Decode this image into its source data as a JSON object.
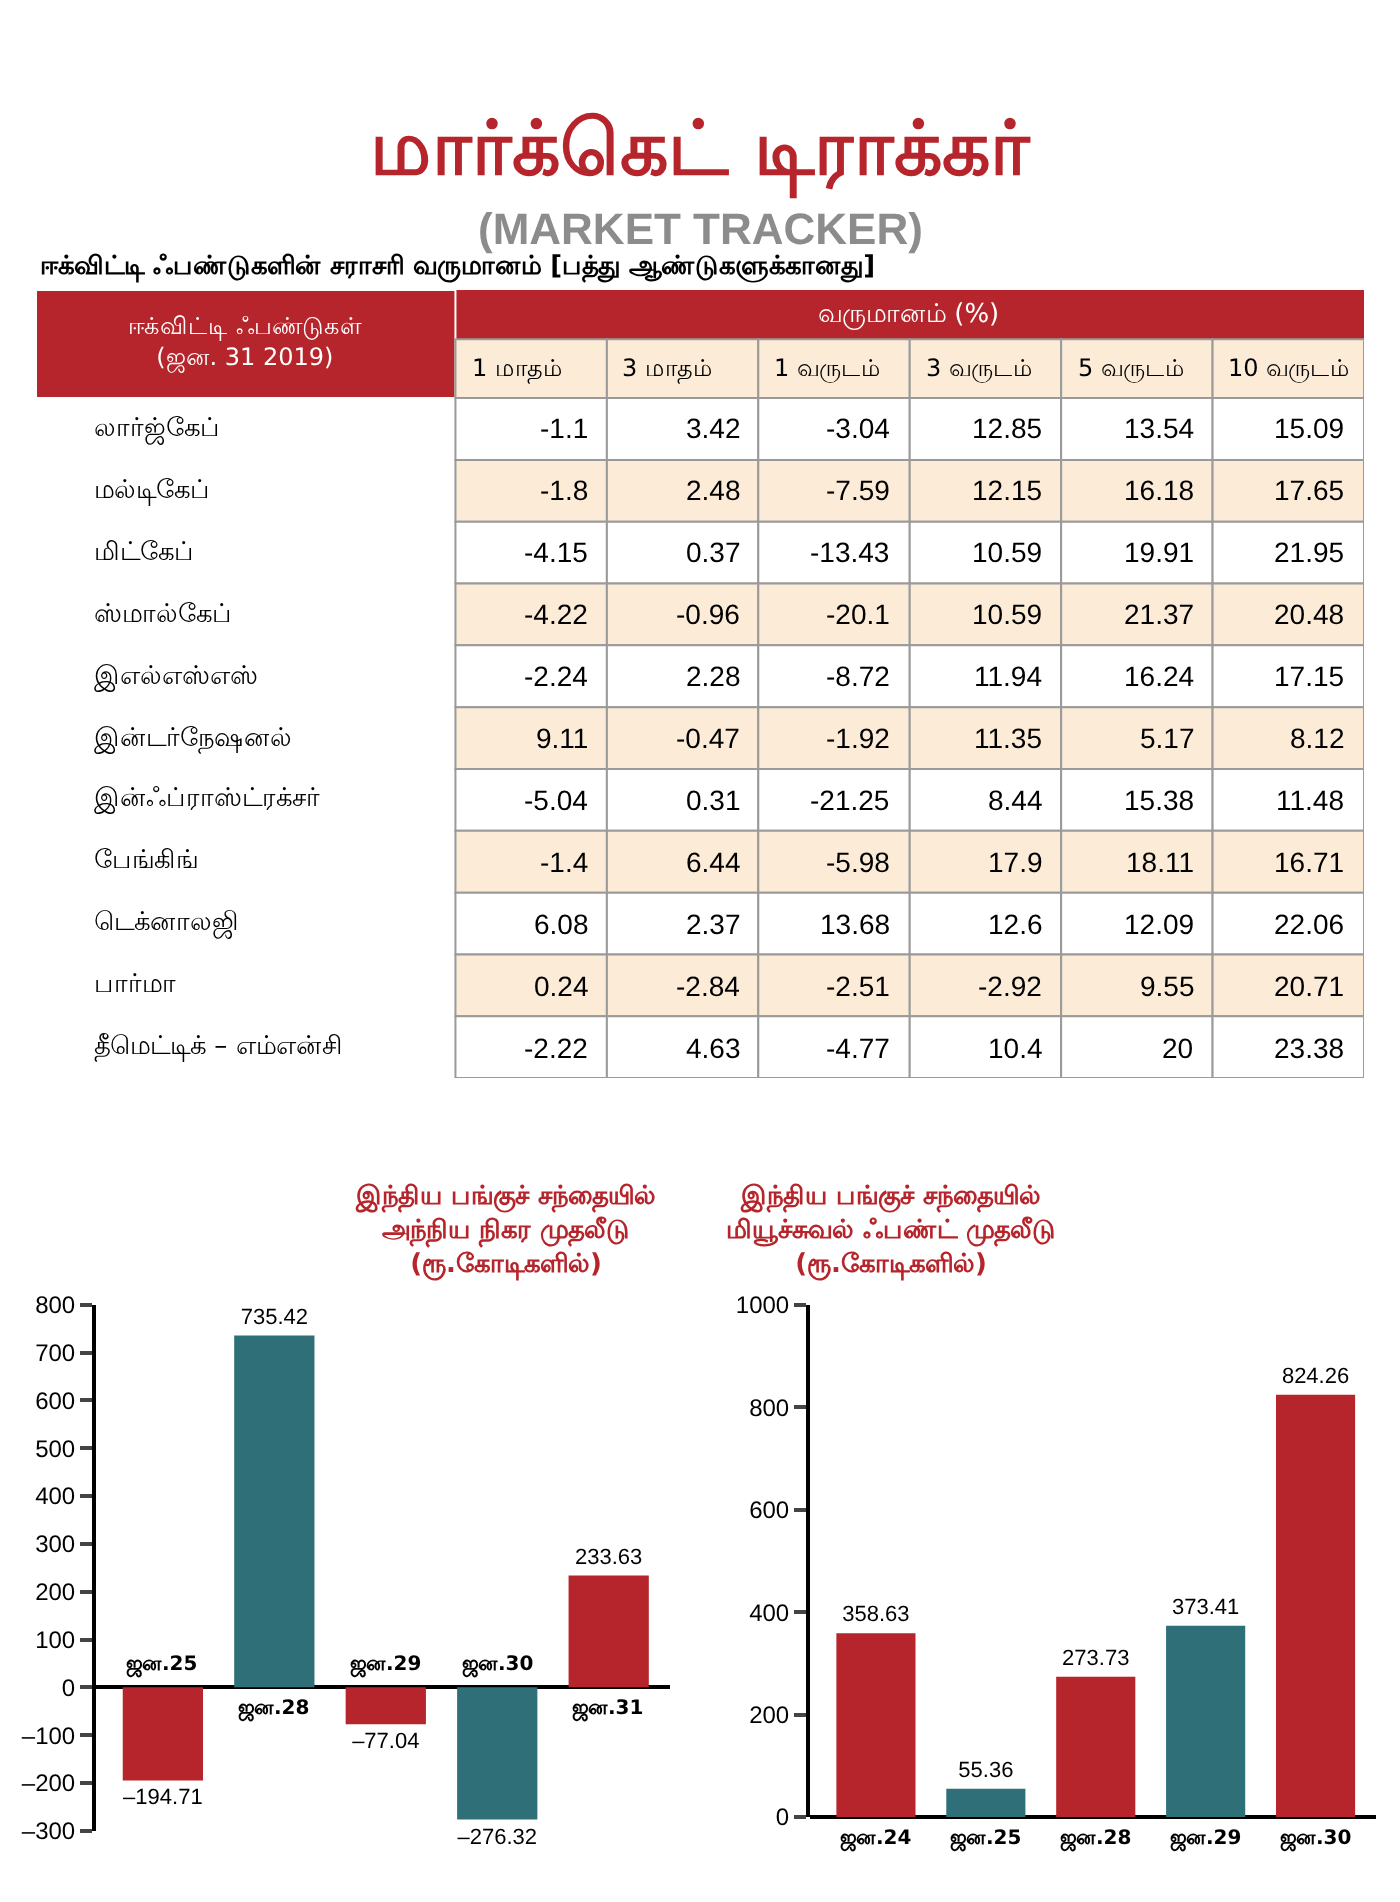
{
  "chart_data": [
    {
      "type": "heatmap",
      "title": "மார்க்கெட் டிராக்கர்",
      "subtitle": "(MARKET TRACKER)",
      "annotations": [
        "ஈக்விட்டி ஃபண்டுகளின் சராசரி வருமானம் [பத்து ஆண்டுகளுக்கானது]"
      ],
      "ylabel": "ஈக்விட்டி ஃபண்டுகள்\n(ஜன. 31 2019)",
      "xlabel": "வருமானம் (%)",
      "categories": [
        "1 மாதம்",
        "3 மாதம்",
        "1 வருடம்",
        "3 வருடம்",
        "5 வருடம்",
        "10 வருடம்"
      ],
      "y_categories": [
        "லார்ஜ்கேப்",
        "மல்டிகேப்",
        "மிட்கேப்",
        "ஸ்மால்கேப்",
        "இஎல்எஸ்எஸ்",
        "இன்டர்நேஷனல்",
        "இன்ஃப்ராஸ்ட்ரக்சர்",
        "பேங்கிங்",
        "டெக்னாலஜி",
        "பார்மா",
        "தீமெட்டிக் – எம்என்சி"
      ],
      "cells": [
        [
          -1.1,
          3.42,
          -3.04,
          12.85,
          13.54,
          15.09
        ],
        [
          -1.8,
          2.48,
          -7.59,
          12.15,
          16.18,
          17.65
        ],
        [
          -4.15,
          0.37,
          -13.43,
          10.59,
          19.91,
          21.95
        ],
        [
          -4.22,
          -0.96,
          -20.1,
          10.59,
          21.37,
          20.48
        ],
        [
          -2.24,
          2.28,
          -8.72,
          11.94,
          16.24,
          17.15
        ],
        [
          9.11,
          -0.47,
          -1.92,
          11.35,
          5.17,
          8.12
        ],
        [
          -5.04,
          0.31,
          -21.25,
          8.44,
          15.38,
          11.48
        ],
        [
          -1.4,
          6.44,
          -5.98,
          17.9,
          18.11,
          16.71
        ],
        [
          6.08,
          2.37,
          13.68,
          12.6,
          12.09,
          22.06
        ],
        [
          0.24,
          -2.84,
          -2.51,
          -2.92,
          9.55,
          20.71
        ],
        [
          -2.22,
          4.63,
          -4.77,
          10.4,
          20,
          23.38
        ]
      ],
      "data_labels": true
    },
    {
      "type": "bar",
      "title": "இந்திய பங்குச் சந்தையில்\nஅந்நிய நிகர முதலீடு\n(ரூ.கோடிகளில்)",
      "categories": [
        "ஜன.25",
        "ஜன.28",
        "ஜன.29",
        "ஜன.30",
        "ஜன.31"
      ],
      "values": [
        -194.71,
        735.42,
        -77.04,
        -276.32,
        233.63
      ],
      "value_labels": [
        "–194.71",
        "735.42",
        "–77.04",
        "–276.32",
        "233.63"
      ],
      "colors": [
        "#b5252b",
        "#2e6f78",
        "#b5252b",
        "#2e6f78",
        "#b5252b"
      ],
      "ylim": [
        -300,
        800
      ],
      "yticks": [
        {
          "value": -300,
          "label": "–300"
        },
        {
          "value": -200,
          "label": "–200"
        },
        {
          "value": -100,
          "label": "–100"
        },
        0,
        100,
        200,
        300,
        400,
        500,
        600,
        700,
        800
      ]
    },
    {
      "type": "bar",
      "title": "இந்திய பங்குச் சந்தையில்\nமியூச்சுவல் ஃபண்ட் முதலீடு\n(ரூ.கோடிகளில்)",
      "categories": [
        "ஜன.24",
        "ஜன.25",
        "ஜன.28",
        "ஜன.29",
        "ஜன.30"
      ],
      "values": [
        358.63,
        55.36,
        273.73,
        373.41,
        824.26
      ],
      "colors": [
        "#b5252b",
        "#2e6f78",
        "#b5252b",
        "#2e6f78",
        "#b5252b"
      ],
      "ylim": [
        0,
        1000
      ],
      "yticks": [
        0,
        200,
        400,
        600,
        800,
        1000
      ],
      "data_labels": true
    }
  ]
}
